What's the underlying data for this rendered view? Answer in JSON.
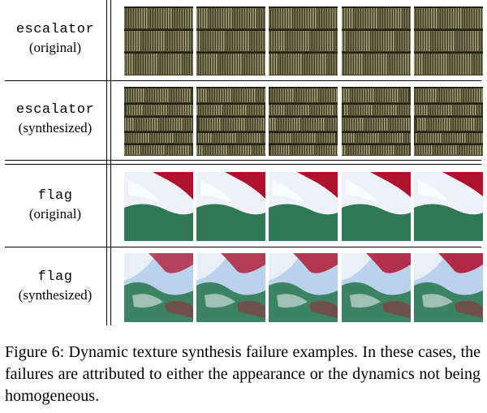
{
  "rows": [
    {
      "name": "escalator",
      "variant": "(original)",
      "texture": "escalator",
      "synthesized": false,
      "frames": 5
    },
    {
      "name": "escalator",
      "variant": "(synthesized)",
      "texture": "escalator",
      "synthesized": true,
      "frames": 5
    },
    {
      "name": "flag",
      "variant": "(original)",
      "texture": "flag",
      "synthesized": false,
      "frames": 5
    },
    {
      "name": "flag",
      "variant": "(synthesized)",
      "texture": "flag",
      "synthesized": true,
      "frames": 5
    }
  ],
  "colors": {
    "escalator_dark": "#3b3a22",
    "escalator_light": "#b8b58c",
    "flag_red": "#b0112c",
    "flag_white": "#eef2f8",
    "flag_green": "#2f7a55",
    "sky": "#8fb8e0"
  },
  "caption": "Figure 6: Dynamic texture synthesis failure examples. In these cases, the failures are attributed to either the appearance or the dynamics not being homogeneous."
}
